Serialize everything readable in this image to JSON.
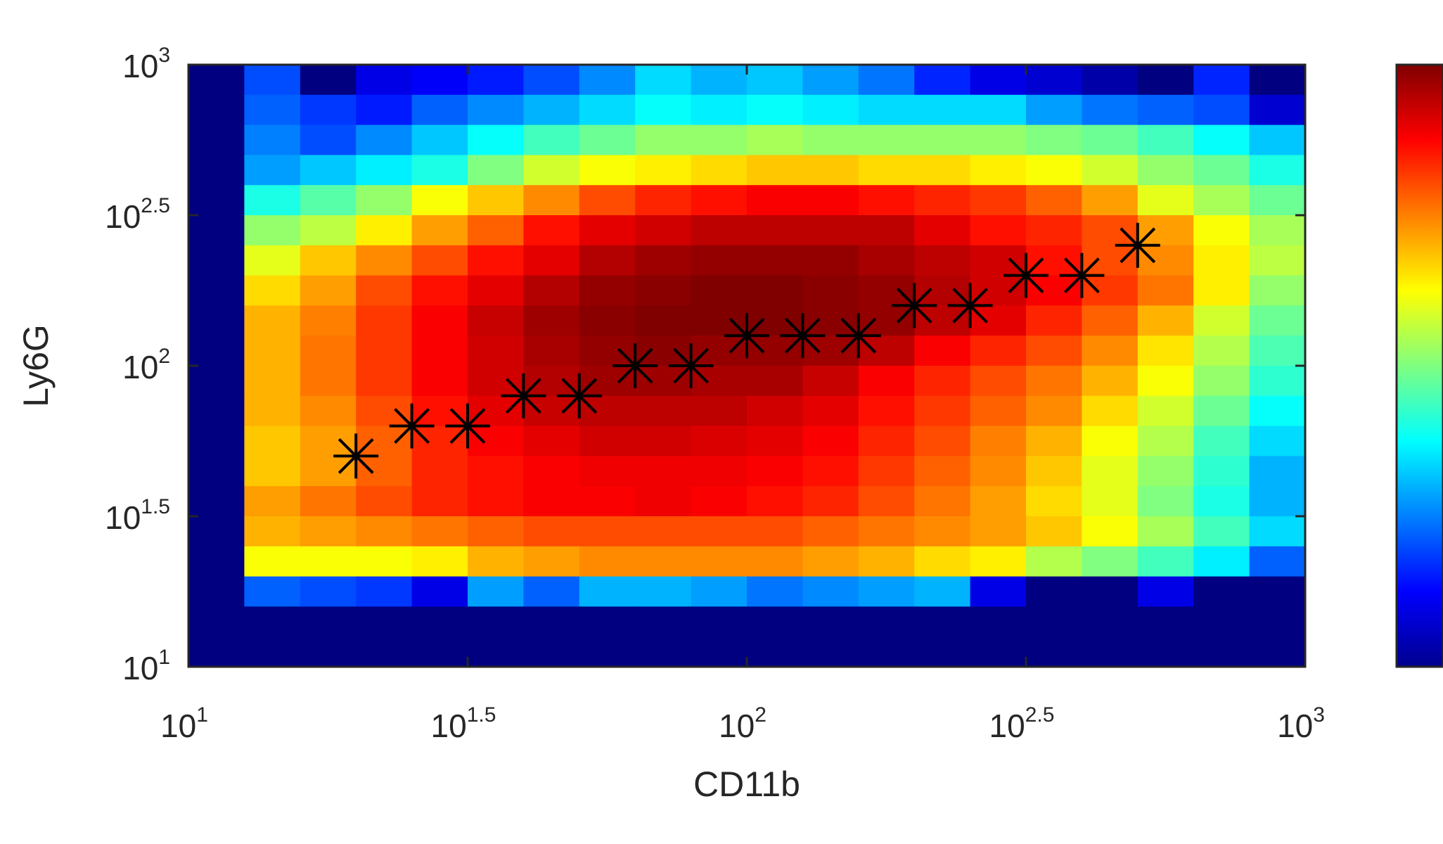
{
  "chart_data": {
    "type": "heatmap",
    "xlabel": "CD11b",
    "ylabel": "Ly6G",
    "x_scale": "log",
    "y_scale": "log",
    "xlim": [
      10,
      1000
    ],
    "ylim": [
      10,
      1000
    ],
    "x_ticks": [
      {
        "base": "10",
        "exp": "1"
      },
      {
        "base": "10",
        "exp": "1.5"
      },
      {
        "base": "10",
        "exp": "2"
      },
      {
        "base": "10",
        "exp": "2.5"
      },
      {
        "base": "10",
        "exp": "3"
      }
    ],
    "y_ticks": [
      {
        "base": "10",
        "exp": "1"
      },
      {
        "base": "10",
        "exp": "1.5"
      },
      {
        "base": "10",
        "exp": "2"
      },
      {
        "base": "10",
        "exp": "2.5"
      },
      {
        "base": "10",
        "exp": "3"
      }
    ],
    "colormap": "jet",
    "grid": false,
    "colorbar": true,
    "heatmap": {
      "log10_x_edges": [
        1.0,
        1.1,
        1.2,
        1.3,
        1.4,
        1.5,
        1.6,
        1.7,
        1.8,
        1.9,
        2.0,
        2.1,
        2.2,
        2.3,
        2.4,
        2.5,
        2.6,
        2.7,
        2.8,
        2.9,
        3.0
      ],
      "log10_y_edges": [
        1.0,
        1.1,
        1.2,
        1.3,
        1.4,
        1.5,
        1.6,
        1.7,
        1.8,
        1.9,
        2.0,
        2.1,
        2.2,
        2.3,
        2.4,
        2.5,
        2.6,
        2.7,
        2.8,
        2.9,
        3.0
      ],
      "values_top_to_bottom": [
        [
          0.0,
          0.2,
          0.0,
          0.1,
          0.12,
          0.15,
          0.2,
          0.26,
          0.34,
          0.3,
          0.32,
          0.28,
          0.24,
          0.16,
          0.1,
          0.08,
          0.04,
          0.0,
          0.16,
          0.0
        ],
        [
          0.0,
          0.22,
          0.18,
          0.15,
          0.22,
          0.26,
          0.3,
          0.34,
          0.38,
          0.36,
          0.38,
          0.36,
          0.34,
          0.34,
          0.34,
          0.28,
          0.24,
          0.22,
          0.2,
          0.08
        ],
        [
          0.0,
          0.25,
          0.2,
          0.26,
          0.32,
          0.38,
          0.44,
          0.48,
          0.52,
          0.52,
          0.54,
          0.52,
          0.52,
          0.52,
          0.52,
          0.5,
          0.48,
          0.44,
          0.38,
          0.32
        ],
        [
          0.0,
          0.28,
          0.32,
          0.36,
          0.4,
          0.5,
          0.58,
          0.62,
          0.64,
          0.66,
          0.68,
          0.68,
          0.66,
          0.66,
          0.64,
          0.62,
          0.58,
          0.52,
          0.48,
          0.4
        ],
        [
          0.0,
          0.4,
          0.46,
          0.52,
          0.62,
          0.68,
          0.74,
          0.8,
          0.84,
          0.86,
          0.88,
          0.88,
          0.86,
          0.84,
          0.82,
          0.78,
          0.72,
          0.6,
          0.54,
          0.48
        ],
        [
          0.0,
          0.52,
          0.56,
          0.64,
          0.72,
          0.78,
          0.86,
          0.9,
          0.92,
          0.94,
          0.94,
          0.94,
          0.94,
          0.9,
          0.86,
          0.84,
          0.8,
          0.72,
          0.62,
          0.54
        ],
        [
          0.0,
          0.6,
          0.68,
          0.74,
          0.8,
          0.86,
          0.9,
          0.95,
          0.97,
          0.98,
          0.98,
          0.98,
          0.96,
          0.94,
          0.92,
          0.86,
          0.8,
          0.74,
          0.64,
          0.56
        ],
        [
          0.0,
          0.66,
          0.72,
          0.8,
          0.86,
          0.9,
          0.95,
          0.98,
          0.99,
          1.0,
          1.0,
          0.99,
          0.98,
          0.95,
          0.92,
          0.88,
          0.82,
          0.76,
          0.64,
          0.52
        ],
        [
          0.0,
          0.7,
          0.75,
          0.82,
          0.88,
          0.93,
          0.97,
          0.99,
          1.0,
          1.0,
          1.0,
          0.99,
          0.98,
          0.94,
          0.9,
          0.84,
          0.78,
          0.7,
          0.58,
          0.48
        ],
        [
          0.0,
          0.7,
          0.76,
          0.82,
          0.88,
          0.92,
          0.96,
          0.98,
          0.99,
          0.98,
          0.98,
          0.97,
          0.94,
          0.88,
          0.84,
          0.8,
          0.74,
          0.65,
          0.55,
          0.45
        ],
        [
          0.0,
          0.7,
          0.76,
          0.82,
          0.88,
          0.92,
          0.95,
          0.97,
          0.97,
          0.96,
          0.96,
          0.93,
          0.88,
          0.84,
          0.8,
          0.76,
          0.7,
          0.62,
          0.52,
          0.42
        ],
        [
          0.0,
          0.7,
          0.74,
          0.8,
          0.86,
          0.9,
          0.93,
          0.94,
          0.94,
          0.94,
          0.92,
          0.9,
          0.86,
          0.82,
          0.78,
          0.74,
          0.66,
          0.58,
          0.48,
          0.38
        ],
        [
          0.0,
          0.68,
          0.72,
          0.78,
          0.84,
          0.88,
          0.9,
          0.92,
          0.92,
          0.91,
          0.9,
          0.88,
          0.84,
          0.8,
          0.75,
          0.7,
          0.62,
          0.55,
          0.44,
          0.34
        ],
        [
          0.0,
          0.68,
          0.72,
          0.78,
          0.84,
          0.86,
          0.88,
          0.89,
          0.89,
          0.89,
          0.88,
          0.86,
          0.82,
          0.78,
          0.74,
          0.68,
          0.6,
          0.52,
          0.42,
          0.3
        ],
        [
          0.0,
          0.72,
          0.76,
          0.8,
          0.84,
          0.86,
          0.88,
          0.88,
          0.89,
          0.88,
          0.86,
          0.84,
          0.8,
          0.76,
          0.72,
          0.66,
          0.6,
          0.5,
          0.4,
          0.3
        ],
        [
          0.0,
          0.7,
          0.72,
          0.74,
          0.76,
          0.78,
          0.8,
          0.8,
          0.8,
          0.8,
          0.8,
          0.78,
          0.76,
          0.74,
          0.72,
          0.68,
          0.62,
          0.54,
          0.44,
          0.34
        ],
        [
          0.0,
          0.62,
          0.62,
          0.62,
          0.64,
          0.7,
          0.72,
          0.74,
          0.74,
          0.74,
          0.74,
          0.72,
          0.7,
          0.66,
          0.64,
          0.55,
          0.5,
          0.44,
          0.36,
          0.22
        ],
        [
          0.0,
          0.22,
          0.2,
          0.18,
          0.1,
          0.28,
          0.22,
          0.3,
          0.3,
          0.28,
          0.24,
          0.26,
          0.28,
          0.3,
          0.1,
          0.0,
          0.0,
          0.1,
          0.0,
          0.0
        ],
        [
          0.0,
          0.0,
          0.0,
          0.0,
          0.0,
          0.0,
          0.0,
          0.0,
          0.0,
          0.0,
          0.0,
          0.0,
          0.0,
          0.0,
          0.0,
          0.0,
          0.0,
          0.0,
          0.0,
          0.0
        ],
        [
          0.0,
          0.0,
          0.0,
          0.0,
          0.0,
          0.0,
          0.0,
          0.0,
          0.0,
          0.0,
          0.0,
          0.0,
          0.0,
          0.0,
          0.0,
          0.0,
          0.0,
          0.0,
          0.0,
          0.0
        ]
      ]
    },
    "series": [
      {
        "type": "scatter",
        "marker": "asterisk",
        "color": "#000000",
        "log10_x": [
          1.3,
          1.4,
          1.5,
          1.6,
          1.7,
          1.8,
          1.9,
          2.0,
          2.1,
          2.2,
          2.3,
          2.4,
          2.5,
          2.6,
          2.7
        ],
        "log10_y": [
          1.7,
          1.8,
          1.8,
          1.9,
          1.9,
          2.0,
          2.0,
          2.1,
          2.1,
          2.1,
          2.2,
          2.2,
          2.3,
          2.3,
          2.4
        ]
      }
    ]
  }
}
